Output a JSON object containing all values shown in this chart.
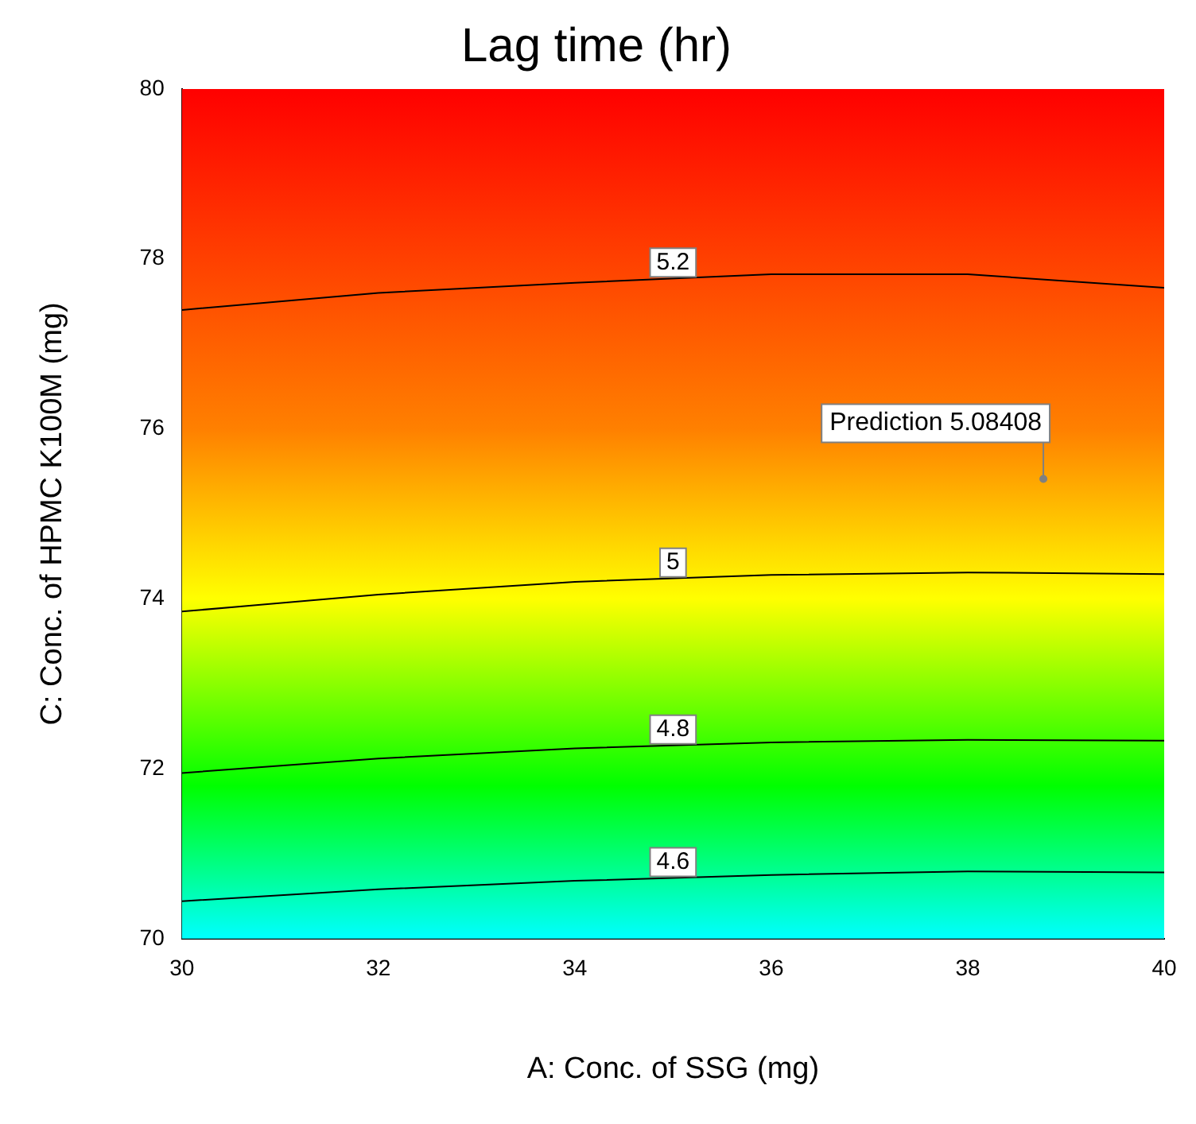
{
  "chart_data": {
    "type": "line",
    "title": "Lag time (hr)",
    "xlabel": "A: Conc. of SSG (mg)",
    "ylabel": "C: Conc. of HPMC K100M (mg)",
    "x": [
      30,
      32,
      34,
      36,
      38,
      40
    ],
    "series": [
      {
        "name": "5.2",
        "color": "#000000",
        "values": [
          77.4,
          77.6,
          77.72,
          77.82,
          77.82,
          77.66
        ]
      },
      {
        "name": "5",
        "color": "#000000",
        "values": [
          73.85,
          74.05,
          74.2,
          74.28,
          74.31,
          74.29
        ]
      },
      {
        "name": "4.8",
        "color": "#000000",
        "values": [
          71.95,
          72.12,
          72.24,
          72.31,
          72.34,
          72.33
        ]
      },
      {
        "name": "4.6",
        "color": "#000000",
        "values": [
          70.44,
          70.58,
          70.68,
          70.75,
          70.79,
          70.78
        ]
      }
    ],
    "xlim": [
      30,
      40
    ],
    "xticks": [
      30,
      32,
      34,
      36,
      38,
      40
    ],
    "ylim": [
      70,
      80
    ],
    "yticks": [
      70,
      72,
      74,
      76,
      78,
      80
    ],
    "annotations": [
      {
        "text": "Prediction 5.08408",
        "x": 38.77,
        "y": 75.41
      }
    ],
    "grid": false,
    "legend": false,
    "marker": "none",
    "line_style": "solid"
  }
}
